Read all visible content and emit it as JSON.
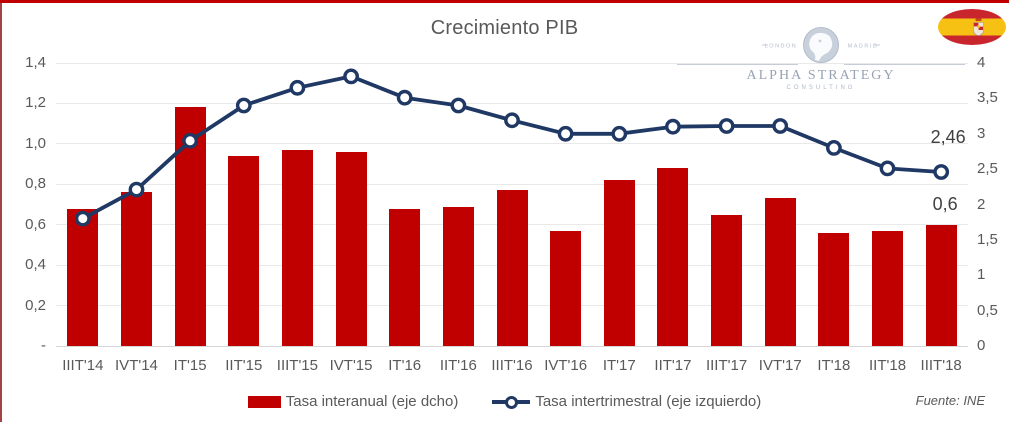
{
  "page": {
    "title": "Crecimiento PIB",
    "source_note": "Fuente: INE"
  },
  "branding": {
    "logo_line1": "ALPHA STRATEGY",
    "logo_line2": "CONSULTING",
    "logo_city_left": "LONDON",
    "logo_city_right": "MADRID",
    "flag_icon": "spain-flag"
  },
  "colors": {
    "bar": "#C00000",
    "line": "#1F3864",
    "title_text": "#595959",
    "axis_text": "#595959",
    "annotation_text": "#404040",
    "grid": "#E9E9E9",
    "top_accent": "#C00000",
    "left_accent": "#A24345",
    "flag_red": "#C9252D",
    "flag_yellow": "#F7C114",
    "logo_gray_blue": "#99A2B4"
  },
  "chart_data": {
    "type": "bar",
    "title": "Crecimiento PIB",
    "categories": [
      "IIIT'14",
      "IVT'14",
      "IT'15",
      "IIT'15",
      "IIIT'15",
      "IVT'15",
      "IT'16",
      "IIT'16",
      "IIIT'16",
      "IVT'16",
      "IT'17",
      "IIT'17",
      "IIIT'17",
      "IVT'17",
      "IT'18",
      "IIT'18",
      "IIIT'18"
    ],
    "series": [
      {
        "name": "Tasa interanual (eje dcho)",
        "type": "bar",
        "axis": "left",
        "color": "#C00000",
        "values": [
          0.68,
          0.76,
          1.18,
          0.94,
          0.97,
          0.96,
          0.68,
          0.69,
          0.77,
          0.57,
          0.82,
          0.88,
          0.65,
          0.73,
          0.56,
          0.57,
          0.6
        ]
      },
      {
        "name": "Tasa intertrimestral (eje izquierdo)",
        "type": "line",
        "axis": "right",
        "color": "#1F3864",
        "values": [
          1.8,
          2.21,
          2.9,
          3.4,
          3.65,
          3.81,
          3.51,
          3.4,
          3.19,
          3.0,
          3.0,
          3.1,
          3.11,
          3.11,
          2.8,
          2.51,
          2.46
        ]
      }
    ],
    "axes": {
      "left": {
        "min": 0,
        "max": 1.4,
        "ticks": [
          {
            "label": "1,4",
            "value": 1.4
          },
          {
            "label": "1,2",
            "value": 1.2
          },
          {
            "label": "1,0",
            "value": 1.0
          },
          {
            "label": "0,8",
            "value": 0.8
          },
          {
            "label": "0,6",
            "value": 0.6
          },
          {
            "label": "0,4",
            "value": 0.4
          },
          {
            "label": "0,2",
            "value": 0.2
          },
          {
            "label": "-",
            "value": 0
          }
        ]
      },
      "right": {
        "min": 0,
        "max": 4,
        "ticks": [
          {
            "label": "4",
            "value": 4
          },
          {
            "label": "3,5",
            "value": 3.5
          },
          {
            "label": "3",
            "value": 3
          },
          {
            "label": "2,5",
            "value": 2.5
          },
          {
            "label": "2",
            "value": 2
          },
          {
            "label": "1,5",
            "value": 1.5
          },
          {
            "label": "1",
            "value": 1
          },
          {
            "label": "0,5",
            "value": 0.5
          },
          {
            "label": "0",
            "value": 0
          }
        ]
      }
    },
    "grid": true,
    "legend_position": "bottom",
    "annotations": [
      {
        "text": "2,46",
        "attach": "line-last"
      },
      {
        "text": "0,6",
        "attach": "bar-last"
      }
    ]
  }
}
